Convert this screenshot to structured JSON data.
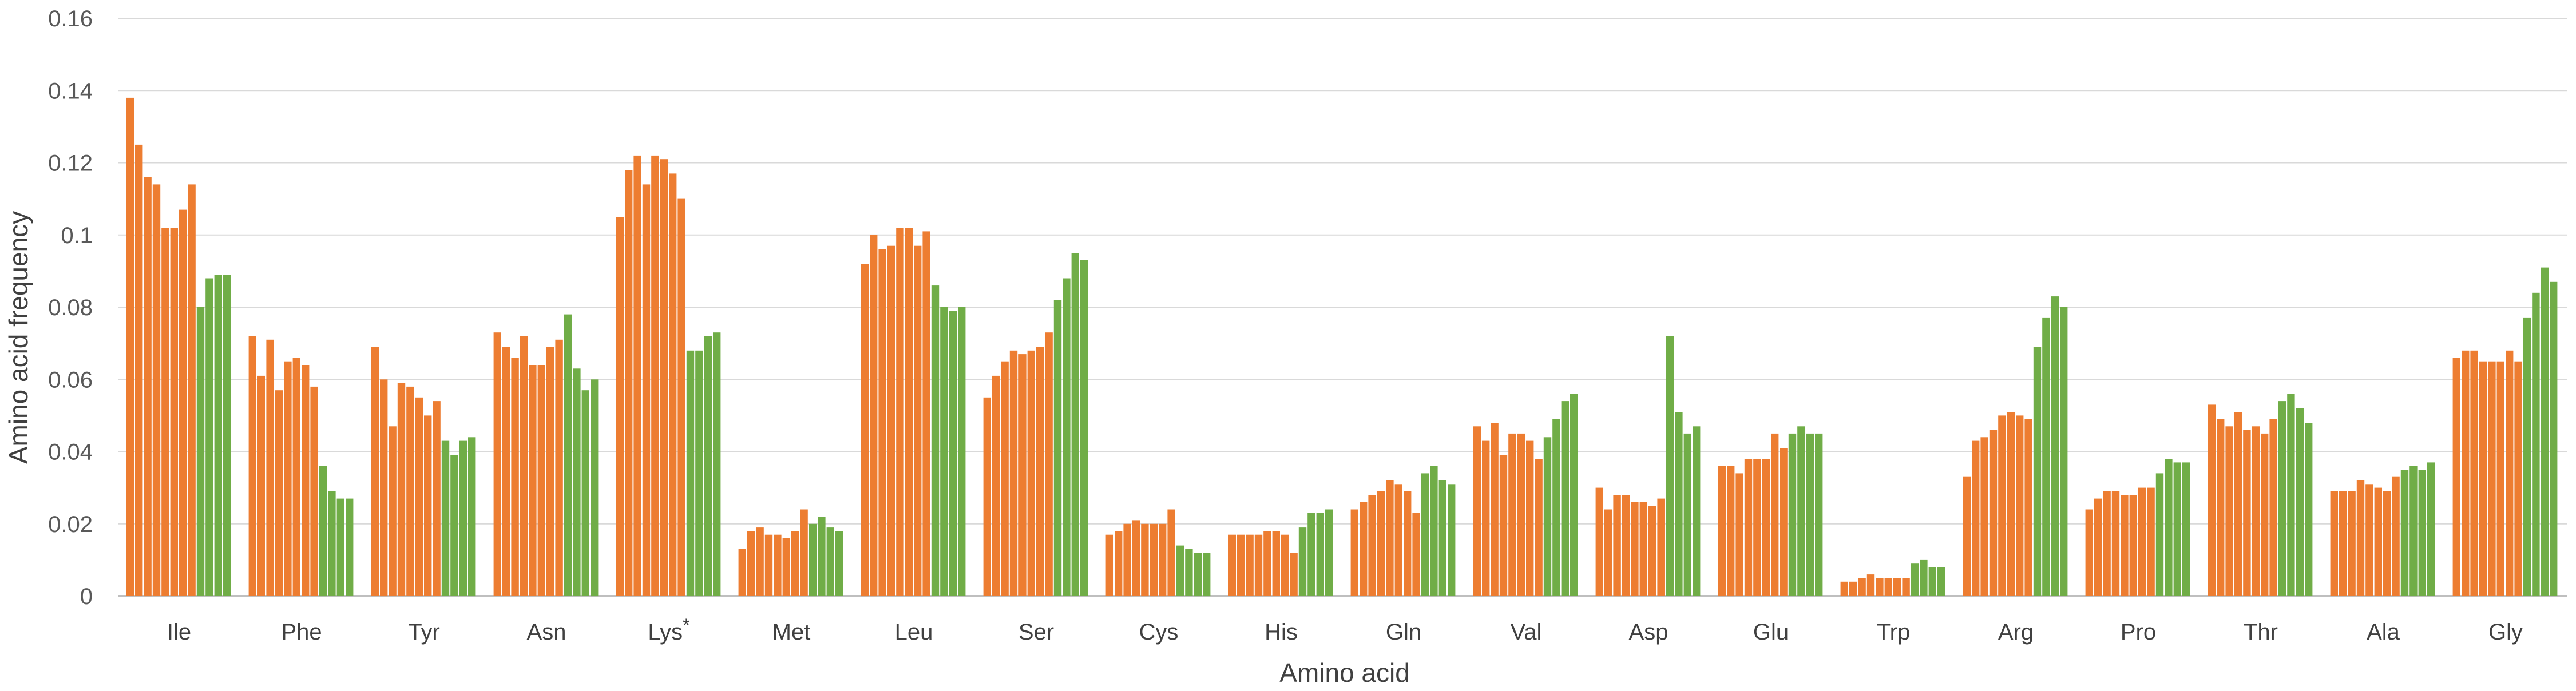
{
  "chart_data": {
    "type": "bar",
    "xlabel": "Amino acid",
    "ylabel": "Amino acid frequency",
    "ylim": [
      0,
      0.16
    ],
    "yticks": [
      "0",
      "0.02",
      "0.04",
      "0.06",
      "0.08",
      "0.1",
      "0.12",
      "0.14",
      "0.16"
    ],
    "grid": true,
    "legend": "none",
    "colors": {
      "orange": "#ED7D31",
      "green": "#70AD47",
      "grid": "#D9D9D9",
      "axis": "#BFBFBF"
    },
    "groups": [
      {
        "label": "Ile",
        "orange": [
          0.138,
          0.125,
          0.116,
          0.114,
          0.102,
          0.102,
          0.107,
          0.114
        ],
        "green": [
          0.08,
          0.088,
          0.089,
          0.089
        ]
      },
      {
        "label": "Phe",
        "orange": [
          0.072,
          0.061,
          0.071,
          0.057,
          0.065,
          0.066,
          0.064,
          0.058
        ],
        "green": [
          0.036,
          0.029,
          0.027,
          0.027
        ]
      },
      {
        "label": "Tyr",
        "orange": [
          0.069,
          0.06,
          0.047,
          0.059,
          0.058,
          0.055,
          0.05,
          0.054
        ],
        "green": [
          0.043,
          0.039,
          0.043,
          0.044
        ]
      },
      {
        "label": "Asn",
        "orange": [
          0.073,
          0.069,
          0.066,
          0.072,
          0.064,
          0.064,
          0.069,
          0.071
        ],
        "green": [
          0.078,
          0.063,
          0.057,
          0.06
        ]
      },
      {
        "label": "Lys",
        "orange": [
          0.105,
          0.118,
          0.122,
          0.114,
          0.122,
          0.121,
          0.117,
          0.11
        ],
        "green": [
          0.068,
          0.068,
          0.072,
          0.073
        ]
      },
      {
        "label": "Met",
        "orange": [
          0.013,
          0.018,
          0.019,
          0.017,
          0.017,
          0.016,
          0.018,
          0.024
        ],
        "green": [
          0.02,
          0.022,
          0.019,
          0.018
        ]
      },
      {
        "label": "Leu",
        "orange": [
          0.092,
          0.1,
          0.096,
          0.097,
          0.102,
          0.102,
          0.097,
          0.101
        ],
        "green": [
          0.086,
          0.08,
          0.079,
          0.08
        ]
      },
      {
        "label": "Ser",
        "orange": [
          0.055,
          0.061,
          0.065,
          0.068,
          0.067,
          0.068,
          0.069,
          0.073
        ],
        "green": [
          0.082,
          0.088,
          0.095,
          0.093
        ]
      },
      {
        "label": "Cys",
        "orange": [
          0.017,
          0.018,
          0.02,
          0.021,
          0.02,
          0.02,
          0.02,
          0.024
        ],
        "green": [
          0.014,
          0.013,
          0.012,
          0.012
        ]
      },
      {
        "label": "His",
        "orange": [
          0.017,
          0.017,
          0.017,
          0.017,
          0.018,
          0.018,
          0.017,
          0.012
        ],
        "green": [
          0.019,
          0.023,
          0.023,
          0.024
        ]
      },
      {
        "label": "Gln",
        "orange": [
          0.024,
          0.026,
          0.028,
          0.029,
          0.032,
          0.031,
          0.029,
          0.023
        ],
        "green": [
          0.034,
          0.036,
          0.032,
          0.031
        ]
      },
      {
        "label": "Val",
        "orange": [
          0.047,
          0.043,
          0.048,
          0.039,
          0.045,
          0.045,
          0.043,
          0.038
        ],
        "green": [
          0.044,
          0.049,
          0.054,
          0.056
        ]
      },
      {
        "label": "Asp",
        "orange": [
          0.03,
          0.024,
          0.028,
          0.028,
          0.026,
          0.026,
          0.025,
          0.027
        ],
        "green": [
          0.072,
          0.051,
          0.045,
          0.047
        ]
      },
      {
        "label": "Glu",
        "orange": [
          0.036,
          0.036,
          0.034,
          0.038,
          0.038,
          0.038,
          0.045,
          0.041
        ],
        "green": [
          0.045,
          0.047,
          0.045,
          0.045
        ]
      },
      {
        "label": "Trp",
        "orange": [
          0.004,
          0.004,
          0.005,
          0.006,
          0.005,
          0.005,
          0.005,
          0.005
        ],
        "green": [
          0.009,
          0.01,
          0.008,
          0.008
        ]
      },
      {
        "label": "Arg",
        "orange": [
          0.033,
          0.043,
          0.044,
          0.046,
          0.05,
          0.051,
          0.05,
          0.049
        ],
        "green": [
          0.069,
          0.077,
          0.083,
          0.08
        ]
      },
      {
        "label": "Pro",
        "orange": [
          0.024,
          0.027,
          0.029,
          0.029,
          0.028,
          0.028,
          0.03,
          0.03
        ],
        "green": [
          0.034,
          0.038,
          0.037,
          0.037
        ]
      },
      {
        "label": "Thr",
        "orange": [
          0.053,
          0.049,
          0.047,
          0.051,
          0.046,
          0.047,
          0.045,
          0.049
        ],
        "green": [
          0.054,
          0.056,
          0.052,
          0.048
        ]
      },
      {
        "label": "Ala",
        "orange": [
          0.029,
          0.029,
          0.029,
          0.032,
          0.031,
          0.03,
          0.029,
          0.033
        ],
        "green": [
          0.035,
          0.036,
          0.035,
          0.037
        ]
      },
      {
        "label": "Gly",
        "orange": [
          0.066,
          0.068,
          0.068,
          0.065,
          0.065,
          0.065,
          0.068,
          0.065
        ],
        "green": [
          0.077,
          0.084,
          0.091,
          0.087
        ]
      }
    ],
    "annotations": [
      {
        "group": "Lys",
        "text": "*"
      }
    ]
  }
}
